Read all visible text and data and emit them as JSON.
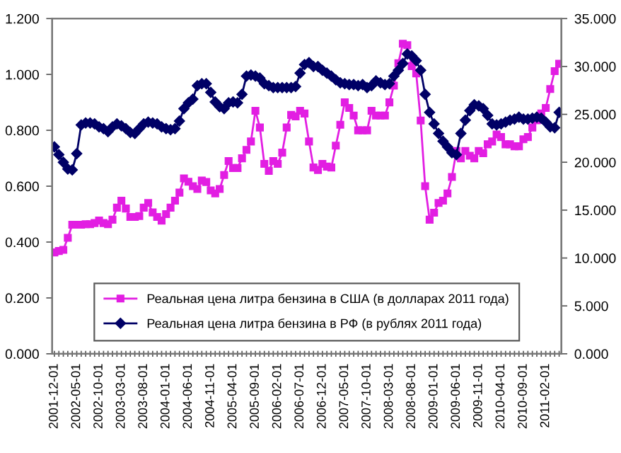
{
  "chart_data": {
    "type": "line",
    "categories": [
      "2001-12-01",
      null,
      null,
      null,
      null,
      "2002-05-01",
      null,
      null,
      null,
      null,
      "2002-10-01",
      null,
      null,
      null,
      null,
      "2003-03-01",
      null,
      null,
      null,
      null,
      "2003-08-01",
      null,
      null,
      null,
      null,
      "2004-01-01",
      null,
      null,
      null,
      null,
      "2004-06-01",
      null,
      null,
      null,
      null,
      "2004-11-01",
      null,
      null,
      null,
      null,
      "2005-04-01",
      null,
      null,
      null,
      null,
      "2005-09-01",
      null,
      null,
      null,
      null,
      "2006-02-01",
      null,
      null,
      null,
      null,
      "2006-07-01",
      null,
      null,
      null,
      null,
      "2006-12-01",
      null,
      null,
      null,
      null,
      "2007-05-01",
      null,
      null,
      null,
      null,
      "2007-10-01",
      null,
      null,
      null,
      null,
      "2008-03-01",
      null,
      null,
      null,
      null,
      "2008-08-01",
      null,
      null,
      null,
      null,
      "2009-01-01",
      null,
      null,
      null,
      null,
      "2009-06-01",
      null,
      null,
      null,
      null,
      "2009-11-01",
      null,
      null,
      null,
      null,
      "2010-04-01",
      null,
      null,
      null,
      null,
      "2010-09-01",
      null,
      null,
      null,
      null,
      "2011-02-01",
      null,
      null,
      null
    ],
    "series": [
      {
        "name": "Реальная цена литра бензина в США (в долларах 2011 года)",
        "color": "#e21ee2",
        "marker": "square",
        "values": [
          0.363,
          0.368,
          0.372,
          0.415,
          0.462,
          0.462,
          0.462,
          0.464,
          0.464,
          0.468,
          0.477,
          0.468,
          0.464,
          0.48,
          0.523,
          0.548,
          0.52,
          0.49,
          0.49,
          0.493,
          0.523,
          0.54,
          0.506,
          0.49,
          0.477,
          0.5,
          0.523,
          0.548,
          0.577,
          0.628,
          0.616,
          0.6,
          0.59,
          0.62,
          0.615,
          0.585,
          0.574,
          0.59,
          0.64,
          0.69,
          0.665,
          0.665,
          0.7,
          0.73,
          0.76,
          0.87,
          0.81,
          0.68,
          0.655,
          0.69,
          0.68,
          0.72,
          0.81,
          0.855,
          0.85,
          0.87,
          0.86,
          0.76,
          0.667,
          0.658,
          0.68,
          0.67,
          0.667,
          0.745,
          0.82,
          0.9,
          0.88,
          0.853,
          0.8,
          0.8,
          0.8,
          0.87,
          0.853,
          0.853,
          0.853,
          0.9,
          0.96,
          1.04,
          1.11,
          1.105,
          1.03,
          1.004,
          0.835,
          0.6,
          0.48,
          0.505,
          0.54,
          0.548,
          0.574,
          0.633,
          0.726,
          0.7,
          0.726,
          0.709,
          0.7,
          0.726,
          0.718,
          0.75,
          0.76,
          0.785,
          0.776,
          0.75,
          0.75,
          0.743,
          0.743,
          0.768,
          0.776,
          0.81,
          0.836,
          0.86,
          0.88,
          0.948,
          1.012,
          1.038
        ]
      },
      {
        "name": "Реальная цена литра бензина в РФ (в рублях 2011 года)",
        "color": "#000066",
        "marker": "diamond",
        "axis": "y2",
        "values": [
          21.6,
          20.8,
          20.0,
          19.3,
          19.2,
          20.9,
          23.9,
          24.1,
          24.1,
          24.0,
          23.7,
          23.5,
          23.2,
          23.7,
          24.0,
          23.8,
          23.5,
          23.1,
          23.0,
          23.5,
          24.0,
          24.2,
          24.1,
          24.0,
          23.7,
          23.5,
          23.4,
          23.5,
          24.3,
          25.6,
          26.2,
          26.6,
          28.0,
          28.2,
          28.2,
          27.3,
          26.3,
          25.8,
          25.6,
          26.2,
          26.3,
          26.2,
          27.1,
          29.0,
          29.1,
          29.0,
          28.8,
          28.2,
          28.0,
          27.8,
          27.8,
          27.8,
          27.8,
          27.8,
          27.9,
          29.3,
          30.2,
          30.4,
          30.0,
          30.0,
          29.6,
          29.3,
          29.0,
          28.6,
          28.3,
          28.2,
          28.1,
          28.1,
          28.0,
          28.1,
          27.8,
          28.0,
          28.5,
          28.3,
          28.1,
          28.2,
          29.0,
          29.6,
          30.3,
          31.3,
          31.1,
          30.6,
          29.6,
          27.1,
          25.2,
          24.0,
          23.0,
          22.2,
          21.6,
          21.0,
          20.8,
          23.0,
          24.4,
          25.4,
          26.0,
          25.9,
          25.6,
          24.9,
          24.0,
          23.9,
          24.0,
          24.2,
          24.4,
          24.5,
          24.7,
          24.5,
          24.5,
          24.6,
          24.7,
          24.6,
          24.2,
          23.7,
          23.6,
          25.2
        ]
      }
    ],
    "ylim": [
      0,
      1.2
    ],
    "yticks": [
      {
        "value": 0,
        "label": "0.000"
      },
      {
        "value": 0.2,
        "label": "0.200"
      },
      {
        "value": 0.4,
        "label": "0.400"
      },
      {
        "value": 0.6,
        "label": "0.600"
      },
      {
        "value": 0.8,
        "label": "0.800"
      },
      {
        "value": 1.0,
        "label": "1.000"
      },
      {
        "value": 1.2,
        "label": "1.200"
      }
    ],
    "y2lim": [
      0,
      35
    ],
    "y2ticks": [
      {
        "value": 0,
        "label": "0.000"
      },
      {
        "value": 5,
        "label": "5.000"
      },
      {
        "value": 10,
        "label": "10.000"
      },
      {
        "value": 15,
        "label": "15.000"
      },
      {
        "value": 20,
        "label": "20.000"
      },
      {
        "value": 25,
        "label": "25.000"
      },
      {
        "value": 30,
        "label": "30.000"
      },
      {
        "value": 35,
        "label": "35.000"
      }
    ],
    "legend": "bottom",
    "line_style": "solid"
  }
}
